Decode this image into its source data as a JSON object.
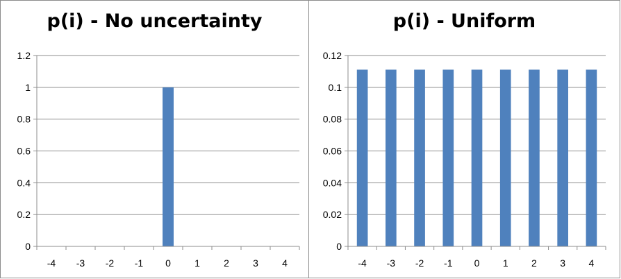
{
  "chart_data": [
    {
      "type": "bar",
      "title": "p(i) - No uncertainty",
      "categories": [
        "-4",
        "-3",
        "-2",
        "-1",
        "0",
        "1",
        "2",
        "3",
        "4"
      ],
      "values": [
        0,
        0,
        0,
        0,
        1,
        0,
        0,
        0,
        0
      ],
      "ylim": [
        0,
        1.2
      ],
      "yticks": [
        "0",
        "0.2",
        "0.4",
        "0.6",
        "0.8",
        "1",
        "1.2"
      ],
      "grid": true,
      "bar_color": "#4f81bd"
    },
    {
      "type": "bar",
      "title": "p(i) - Uniform",
      "categories": [
        "-4",
        "-3",
        "-2",
        "-1",
        "0",
        "1",
        "2",
        "3",
        "4"
      ],
      "values": [
        0.1111,
        0.1111,
        0.1111,
        0.1111,
        0.1111,
        0.1111,
        0.1111,
        0.1111,
        0.1111
      ],
      "ylim": [
        0,
        0.12
      ],
      "yticks": [
        "0",
        "0.02",
        "0.04",
        "0.06",
        "0.08",
        "0.1",
        "0.12"
      ],
      "grid": true,
      "bar_color": "#4f81bd"
    }
  ]
}
